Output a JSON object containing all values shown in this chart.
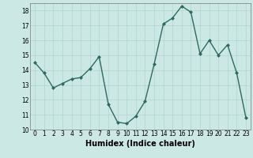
{
  "x": [
    0,
    1,
    2,
    3,
    4,
    5,
    6,
    7,
    8,
    9,
    10,
    11,
    12,
    13,
    14,
    15,
    16,
    17,
    18,
    19,
    20,
    21,
    22,
    23
  ],
  "y": [
    14.5,
    13.8,
    12.8,
    13.1,
    13.4,
    13.5,
    14.1,
    14.9,
    11.7,
    10.5,
    10.4,
    10.9,
    11.9,
    14.4,
    17.1,
    17.5,
    18.3,
    17.9,
    15.1,
    16.0,
    15.0,
    15.7,
    13.8,
    10.8
  ],
  "line_color": "#2e6b5e",
  "marker": "D",
  "marker_size": 2.0,
  "bg_color": "#cce8e4",
  "grid_color": "#aed4cf",
  "xlabel": "Humidex (Indice chaleur)",
  "ylim": [
    10,
    18.5
  ],
  "xlim": [
    -0.5,
    23.5
  ],
  "yticks": [
    10,
    11,
    12,
    13,
    14,
    15,
    16,
    17,
    18
  ],
  "xticks": [
    0,
    1,
    2,
    3,
    4,
    5,
    6,
    7,
    8,
    9,
    10,
    11,
    12,
    13,
    14,
    15,
    16,
    17,
    18,
    19,
    20,
    21,
    22,
    23
  ],
  "tick_fontsize": 5.5,
  "xlabel_fontsize": 7.0,
  "linewidth": 1.0
}
